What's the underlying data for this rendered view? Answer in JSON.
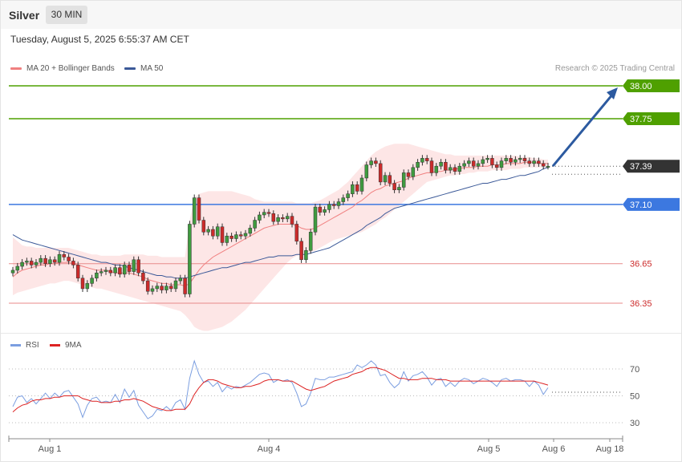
{
  "header": {
    "title": "Silver",
    "timeframe": "30 MIN"
  },
  "datetime": "Tuesday, August 5, 2025 6:55:37 AM CET",
  "legend": {
    "ma20": "MA 20 + Bollinger Bands",
    "ma50": "MA 50"
  },
  "credit": "Research © 2025 Trading Central",
  "rsi_legend": {
    "rsi": "RSI",
    "ma": "9MA"
  },
  "colors": {
    "bullish": "#3f9b3f",
    "bearish": "#cc2b2b",
    "ma20": "#f08080",
    "ma50": "#3b5998",
    "bands": "#fde2e2",
    "resistance": "#4fa000",
    "pivot": "#3c78e0",
    "support": "#e88a8a",
    "current": "#333333",
    "arrow": "#2c5aa0",
    "rsi": "#7b9ee0",
    "rsi_ma": "#dd2222"
  },
  "chart_data": [
    {
      "type": "candlestick",
      "title": "Silver 30 MIN",
      "ylim": [
        36.05,
        38.1
      ],
      "price_levels": [
        {
          "label": "38.00",
          "value": 38.0,
          "kind": "resistance"
        },
        {
          "label": "37.75",
          "value": 37.75,
          "kind": "resistance"
        },
        {
          "label": "37.39",
          "value": 37.39,
          "kind": "current"
        },
        {
          "label": "37.10",
          "value": 37.1,
          "kind": "pivot"
        },
        {
          "label": "36.65",
          "value": 36.65,
          "kind": "support"
        },
        {
          "label": "36.35",
          "value": 36.35,
          "kind": "support"
        }
      ],
      "x_ticks": [
        "Aug 1",
        "Aug 4",
        "Aug 5",
        "Aug 6",
        "Aug 18"
      ],
      "closes": [
        36.6,
        36.63,
        36.66,
        36.67,
        36.64,
        36.66,
        36.69,
        36.65,
        36.68,
        36.66,
        36.72,
        36.7,
        36.67,
        36.64,
        36.54,
        36.46,
        36.5,
        36.54,
        36.58,
        36.59,
        36.6,
        36.58,
        36.62,
        36.57,
        36.64,
        36.59,
        36.68,
        36.58,
        36.52,
        36.44,
        36.46,
        36.48,
        36.45,
        36.48,
        36.46,
        36.52,
        36.54,
        36.42,
        36.95,
        37.15,
        36.98,
        36.89,
        36.91,
        36.86,
        36.93,
        36.81,
        36.86,
        36.84,
        36.87,
        36.86,
        36.88,
        36.92,
        36.98,
        37.02,
        37.04,
        37.03,
        36.97,
        37.0,
        36.99,
        37.01,
        36.95,
        36.82,
        36.68,
        36.75,
        36.89,
        37.08,
        37.04,
        37.06,
        37.1,
        37.09,
        37.12,
        37.15,
        37.18,
        37.25,
        37.2,
        37.3,
        37.4,
        37.43,
        37.41,
        37.27,
        37.32,
        37.26,
        37.21,
        37.23,
        37.34,
        37.31,
        37.38,
        37.42,
        37.45,
        37.43,
        37.34,
        37.39,
        37.42,
        37.36,
        37.38,
        37.35,
        37.39,
        37.41,
        37.43,
        37.39,
        37.41,
        37.44,
        37.45,
        37.4,
        37.38,
        37.43,
        37.45,
        37.42,
        37.44,
        37.45,
        37.43,
        37.41,
        37.43,
        37.41,
        37.39,
        37.39
      ],
      "ma20": [
        36.55,
        36.58,
        36.6,
        36.61,
        36.62,
        36.63,
        36.64,
        36.64,
        36.65,
        36.65,
        36.66,
        36.66,
        36.66,
        36.65,
        36.64,
        36.63,
        36.62,
        36.61,
        36.6,
        36.6,
        36.6,
        36.59,
        36.58,
        36.58,
        36.58,
        36.58,
        36.57,
        36.56,
        36.55,
        36.53,
        36.52,
        36.51,
        36.5,
        36.5,
        36.49,
        36.49,
        36.49,
        36.48,
        36.5,
        36.55,
        36.6,
        36.64,
        36.67,
        36.7,
        36.72,
        36.74,
        36.76,
        36.78,
        36.8,
        36.82,
        36.84,
        36.86,
        36.88,
        36.9,
        36.92,
        36.93,
        36.94,
        36.95,
        36.95,
        36.95,
        36.95,
        36.94,
        36.92,
        36.91,
        36.91,
        36.92,
        36.94,
        36.96,
        36.98,
        37.0,
        37.02,
        37.04,
        37.06,
        37.08,
        37.11,
        37.13,
        37.16,
        37.19,
        37.21,
        37.22,
        37.24,
        37.25,
        37.26,
        37.27,
        37.28,
        37.3,
        37.31,
        37.32,
        37.33,
        37.34,
        37.34,
        37.35,
        37.35,
        37.36,
        37.36,
        37.37,
        37.37,
        37.38,
        37.38,
        37.38,
        37.39,
        37.39,
        37.39,
        37.4,
        37.4,
        37.4,
        37.41,
        37.41,
        37.41,
        37.41,
        37.42,
        37.42,
        37.42,
        37.41,
        37.41,
        37.41
      ],
      "ma50": [
        36.87,
        36.85,
        36.83,
        36.82,
        36.81,
        36.8,
        36.79,
        36.78,
        36.77,
        36.76,
        36.75,
        36.74,
        36.73,
        36.72,
        36.71,
        36.7,
        36.69,
        36.68,
        36.67,
        36.66,
        36.66,
        36.65,
        36.64,
        36.64,
        36.63,
        36.62,
        36.61,
        36.6,
        36.59,
        36.58,
        36.57,
        36.56,
        36.56,
        36.55,
        36.55,
        36.54,
        36.54,
        36.54,
        36.55,
        36.56,
        36.57,
        36.58,
        36.59,
        36.6,
        36.61,
        36.62,
        36.62,
        36.63,
        36.64,
        36.65,
        36.66,
        36.66,
        36.67,
        36.68,
        36.69,
        36.7,
        36.7,
        36.71,
        36.71,
        36.71,
        36.71,
        36.72,
        36.72,
        36.72,
        36.73,
        36.74,
        36.75,
        36.76,
        36.77,
        36.79,
        36.81,
        36.83,
        36.85,
        36.87,
        36.89,
        36.91,
        36.94,
        36.96,
        36.98,
        37.0,
        37.03,
        37.05,
        37.07,
        37.08,
        37.09,
        37.1,
        37.11,
        37.12,
        37.13,
        37.14,
        37.15,
        37.16,
        37.17,
        37.18,
        37.19,
        37.2,
        37.21,
        37.22,
        37.23,
        37.24,
        37.25,
        37.26,
        37.26,
        37.27,
        37.28,
        37.29,
        37.29,
        37.3,
        37.31,
        37.32,
        37.32,
        37.33,
        37.34,
        37.35,
        37.37,
        37.38
      ],
      "bb_upper": [
        36.85,
        36.82,
        36.79,
        36.78,
        36.78,
        36.77,
        36.77,
        36.77,
        36.77,
        36.77,
        36.77,
        36.77,
        36.77,
        36.76,
        36.75,
        36.74,
        36.73,
        36.72,
        36.72,
        36.71,
        36.71,
        36.71,
        36.71,
        36.71,
        36.72,
        36.72,
        36.72,
        36.72,
        36.72,
        36.71,
        36.71,
        36.71,
        36.7,
        36.7,
        36.7,
        36.7,
        36.7,
        36.7,
        36.98,
        37.15,
        37.18,
        37.19,
        37.2,
        37.2,
        37.2,
        37.2,
        37.2,
        37.2,
        37.19,
        37.18,
        37.17,
        37.16,
        37.14,
        37.13,
        37.12,
        37.12,
        37.12,
        37.12,
        37.12,
        37.12,
        37.12,
        37.11,
        37.11,
        37.11,
        37.11,
        37.12,
        37.13,
        37.15,
        37.17,
        37.19,
        37.21,
        37.24,
        37.27,
        37.31,
        37.35,
        37.39,
        37.43,
        37.47,
        37.5,
        37.52,
        37.54,
        37.55,
        37.56,
        37.56,
        37.56,
        37.56,
        37.55,
        37.54,
        37.53,
        37.52,
        37.51,
        37.5,
        37.49,
        37.48,
        37.48,
        37.47,
        37.47,
        37.47,
        37.47,
        37.47,
        37.47,
        37.47,
        37.47,
        37.47,
        37.47,
        37.47,
        37.47,
        37.47,
        37.47,
        37.46,
        37.46,
        37.46,
        37.45,
        37.45,
        37.44,
        37.44
      ],
      "bb_lower": [
        36.41,
        36.43,
        36.44,
        36.45,
        36.46,
        36.47,
        36.48,
        36.49,
        36.5,
        36.5,
        36.51,
        36.52,
        36.52,
        36.51,
        36.5,
        36.49,
        36.48,
        36.47,
        36.46,
        36.46,
        36.45,
        36.44,
        36.43,
        36.42,
        36.41,
        36.4,
        36.39,
        36.38,
        36.37,
        36.36,
        36.35,
        36.34,
        36.33,
        36.32,
        36.31,
        36.3,
        36.29,
        36.26,
        36.22,
        36.17,
        36.15,
        36.14,
        36.14,
        36.15,
        36.16,
        36.17,
        36.19,
        36.21,
        36.24,
        36.27,
        36.3,
        36.34,
        36.38,
        36.42,
        36.46,
        36.5,
        36.54,
        36.58,
        36.62,
        36.66,
        36.69,
        36.71,
        36.72,
        36.73,
        36.74,
        36.75,
        36.77,
        36.79,
        36.81,
        36.83,
        36.84,
        36.85,
        36.86,
        36.87,
        36.88,
        36.89,
        36.91,
        36.93,
        36.95,
        36.98,
        37.0,
        37.03,
        37.06,
        37.09,
        37.12,
        37.15,
        37.18,
        37.21,
        37.24,
        37.27,
        37.28,
        37.29,
        37.3,
        37.31,
        37.32,
        37.32,
        37.33,
        37.33,
        37.34,
        37.34,
        37.35,
        37.35,
        37.35,
        37.36,
        37.36,
        37.36,
        37.36,
        37.37,
        37.37,
        37.37,
        37.38,
        37.38,
        37.38,
        37.38,
        37.38,
        37.38
      ],
      "forecast": {
        "from": 37.39,
        "to": 38.0
      },
      "legend": [
        "MA 20 + Bollinger Bands",
        "MA 50"
      ]
    },
    {
      "type": "line",
      "title": "RSI",
      "ylim": [
        22,
        80
      ],
      "y_ticks": [
        "70",
        "50",
        "30"
      ],
      "series": [
        {
          "name": "RSI",
          "values": [
            42,
            49,
            50,
            45,
            48,
            44,
            48,
            52,
            48,
            52,
            49,
            53,
            54,
            49,
            44,
            34,
            43,
            48,
            49,
            45,
            46,
            45,
            51,
            45,
            55,
            49,
            54,
            43,
            38,
            33,
            35,
            40,
            39,
            42,
            39,
            45,
            47,
            40,
            63,
            76,
            66,
            60,
            61,
            57,
            60,
            53,
            57,
            55,
            57,
            56,
            58,
            60,
            63,
            66,
            67,
            66,
            60,
            62,
            61,
            62,
            60,
            52,
            42,
            44,
            52,
            63,
            62,
            62,
            64,
            64,
            65,
            66,
            67,
            68,
            73,
            71,
            73,
            76,
            73,
            65,
            66,
            60,
            56,
            59,
            68,
            61,
            65,
            66,
            68,
            64,
            58,
            62,
            63,
            57,
            60,
            57,
            61,
            63,
            62,
            59,
            61,
            63,
            62,
            60,
            57,
            62,
            63,
            61,
            62,
            62,
            61,
            57,
            61,
            58,
            51,
            56
          ]
        },
        {
          "name": "9MA",
          "values": [
            38,
            41,
            43,
            44,
            46,
            47,
            47,
            48,
            48,
            49,
            49,
            50,
            50,
            50,
            50,
            48,
            47,
            46,
            46,
            45,
            45,
            45,
            46,
            46,
            47,
            47,
            48,
            47,
            46,
            44,
            42,
            41,
            40,
            39,
            39,
            40,
            40,
            40,
            44,
            51,
            56,
            60,
            62,
            62,
            61,
            59,
            58,
            57,
            56,
            56,
            57,
            57,
            58,
            59,
            61,
            62,
            62,
            62,
            61,
            61,
            61,
            59,
            57,
            55,
            54,
            55,
            56,
            57,
            59,
            61,
            62,
            63,
            64,
            66,
            67,
            68,
            70,
            71,
            71,
            70,
            69,
            67,
            65,
            63,
            63,
            62,
            62,
            62,
            63,
            63,
            63,
            62,
            62,
            62,
            61,
            61,
            61,
            61,
            61,
            61,
            61,
            61,
            61,
            61,
            61,
            61,
            61,
            61,
            61,
            61,
            61,
            61,
            61,
            60,
            59,
            58
          ]
        }
      ],
      "legend": [
        "RSI",
        "9MA"
      ]
    }
  ]
}
